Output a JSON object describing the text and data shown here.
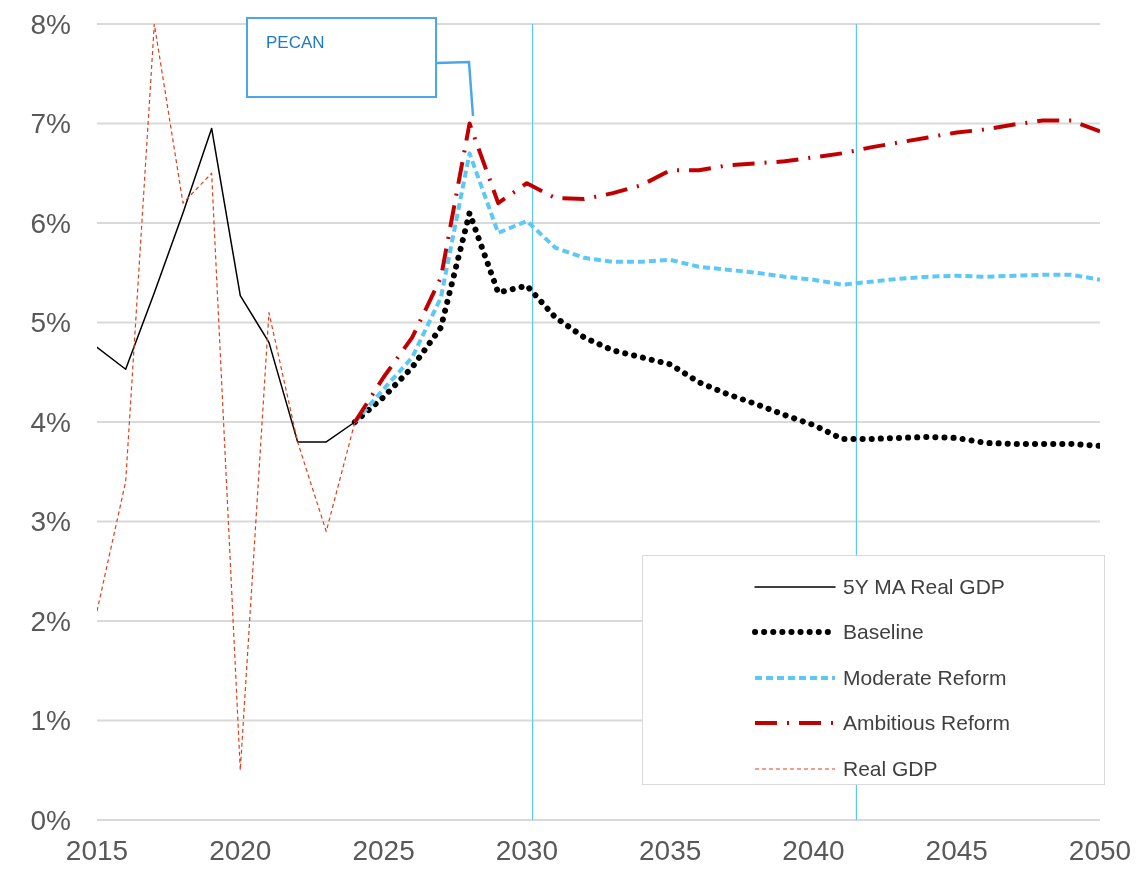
{
  "chart_data": {
    "type": "line",
    "ylim": [
      0,
      8
    ],
    "yticks": [
      {
        "value": 0,
        "label": "0%"
      },
      {
        "value": 1,
        "label": "1%"
      },
      {
        "value": 2,
        "label": "2%"
      },
      {
        "value": 3,
        "label": "3%"
      },
      {
        "value": 4,
        "label": "4%"
      },
      {
        "value": 5,
        "label": "5%"
      },
      {
        "value": 6,
        "label": "6%"
      },
      {
        "value": 7,
        "label": "7%"
      },
      {
        "value": 8,
        "label": "8%"
      }
    ],
    "xlim": [
      2015,
      2050
    ],
    "xticks": [
      2015,
      2020,
      2025,
      2030,
      2035,
      2040,
      2045,
      2050
    ],
    "grid": "y",
    "legend": "bottom right",
    "marker": "none",
    "series": [
      {
        "name": "5Y MA Real GDP",
        "color": "#000000",
        "line_style": "solid",
        "x": [
          2015,
          2016,
          2017,
          2018,
          2019,
          2020,
          2021,
          2022,
          2023,
          2024
        ],
        "values": [
          4.75,
          4.53,
          5.3,
          6.1,
          6.95,
          5.27,
          4.8,
          3.8,
          3.8,
          4.0
        ]
      },
      {
        "name": "Baseline",
        "color": "#000000",
        "line_style": "dotted",
        "x": [
          2024,
          2025,
          2026,
          2027,
          2028,
          2029,
          2030,
          2031,
          2032,
          2033,
          2034,
          2035,
          2036,
          2037,
          2038,
          2039,
          2040,
          2041,
          2042,
          2043,
          2044,
          2045,
          2046,
          2047,
          2048,
          2049,
          2050
        ],
        "values": [
          4.0,
          4.25,
          4.55,
          4.95,
          6.1,
          5.3,
          5.37,
          5.05,
          4.85,
          4.72,
          4.65,
          4.58,
          4.4,
          4.28,
          4.18,
          4.07,
          3.97,
          3.83,
          3.83,
          3.84,
          3.85,
          3.84,
          3.79,
          3.78,
          3.78,
          3.78,
          3.76
        ]
      },
      {
        "name": "Moderate Reform",
        "color": "#5bc8f5",
        "line_style": "dashed",
        "x": [
          2024,
          2025,
          2026,
          2027,
          2028,
          2029,
          2030,
          2031,
          2032,
          2033,
          2034,
          2035,
          2036,
          2037,
          2038,
          2039,
          2040,
          2041,
          2042,
          2043,
          2044,
          2045,
          2046,
          2047,
          2048,
          2049,
          2050
        ],
        "values": [
          4.0,
          4.33,
          4.65,
          5.25,
          6.7,
          5.9,
          6.02,
          5.75,
          5.65,
          5.61,
          5.61,
          5.63,
          5.56,
          5.53,
          5.5,
          5.46,
          5.43,
          5.38,
          5.41,
          5.44,
          5.46,
          5.47,
          5.46,
          5.47,
          5.48,
          5.48,
          5.43
        ]
      },
      {
        "name": "Ambitious Reform",
        "color": "#c00000",
        "line_style": "dashdot",
        "x": [
          2024,
          2025,
          2026,
          2027,
          2028,
          2029,
          2030,
          2031,
          2032,
          2033,
          2034,
          2035,
          2036,
          2037,
          2038,
          2039,
          2040,
          2041,
          2042,
          2043,
          2044,
          2045,
          2046,
          2047,
          2048,
          2049,
          2050
        ],
        "values": [
          4.0,
          4.45,
          4.85,
          5.45,
          7.0,
          6.2,
          6.4,
          6.25,
          6.24,
          6.3,
          6.38,
          6.53,
          6.53,
          6.58,
          6.6,
          6.62,
          6.66,
          6.7,
          6.76,
          6.81,
          6.86,
          6.91,
          6.94,
          6.99,
          7.03,
          7.03,
          6.92
        ]
      },
      {
        "name": "Real GDP",
        "color": "#e0401a",
        "line_style": "dashed",
        "x": [
          2015,
          2016,
          2017,
          2018,
          2019,
          2020,
          2021,
          2022,
          2023,
          2024
        ],
        "values": [
          2.1,
          3.4,
          8.0,
          6.2,
          6.5,
          0.5,
          5.1,
          3.8,
          2.9,
          4.0
        ]
      }
    ],
    "ref_lines": [
      {
        "axis": "x",
        "value": 2030.2,
        "color": "#5bc8f5"
      },
      {
        "axis": "x",
        "value": 2041.5,
        "color": "#5bc8f5"
      }
    ],
    "annotations": [
      "PECAN"
    ]
  }
}
